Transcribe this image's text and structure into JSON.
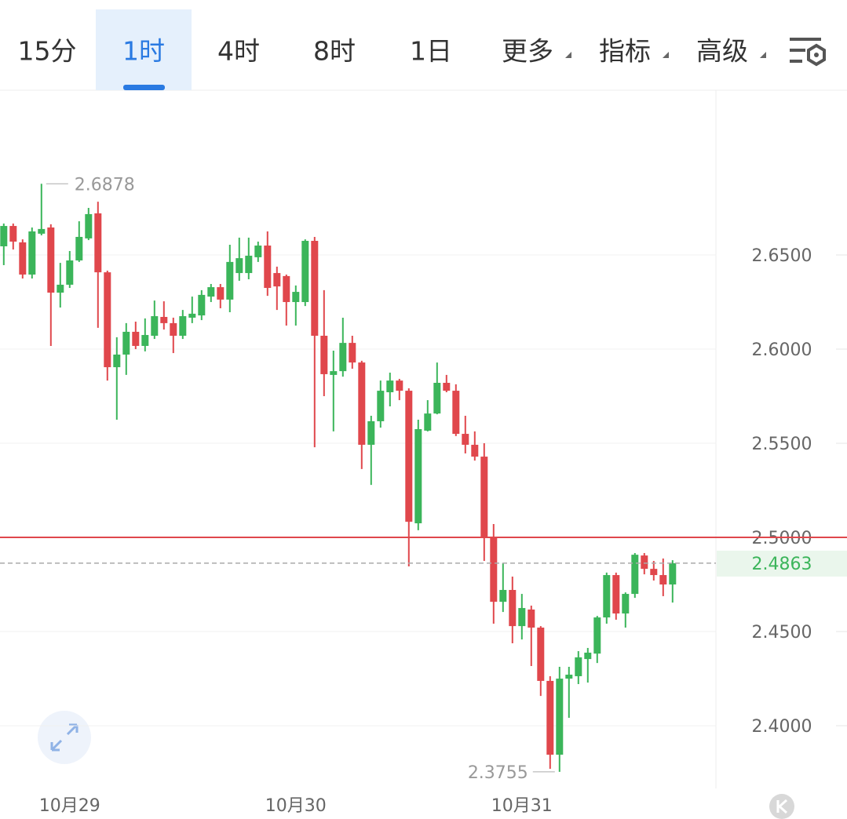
{
  "tabs": {
    "items": [
      "15分",
      "1时",
      "4时",
      "8时",
      "1日",
      "更多",
      "指标",
      "高级"
    ],
    "selected": 1
  },
  "chart_data": {
    "type": "candlestick",
    "up_color": "#3bb55a",
    "down_color": "#e0474c",
    "open": [
      2.6546,
      2.6654,
      2.6567,
      2.6396,
      2.6613,
      2.6646,
      2.63,
      2.6342,
      2.6471,
      2.6588,
      2.6721,
      2.6408,
      2.5904,
      2.5971,
      2.6092,
      2.6017,
      2.6071,
      2.6171,
      2.6138,
      2.6071,
      2.6167,
      2.6179,
      2.6279,
      2.6329,
      2.6263,
      2.6404,
      2.6404,
      2.6488,
      2.655,
      2.6404,
      2.6388,
      2.625,
      2.625,
      2.6575,
      2.6071,
      2.5863,
      2.5883,
      2.6033,
      2.5929,
      2.5492,
      2.5617,
      2.5771,
      2.5833,
      2.5779,
      2.5075,
      2.5567,
      2.5658,
      2.5821,
      2.5779,
      2.555,
      2.5492,
      2.5429,
      2.5,
      2.4658,
      2.4721,
      2.4529,
      2.4617,
      2.4521,
      2.4238,
      2.3846,
      2.425,
      2.4263,
      2.4354,
      2.4383,
      2.4575,
      2.48,
      2.4596,
      2.47,
      2.4904,
      2.4833,
      2.48,
      2.475
    ],
    "high": [
      2.6667,
      2.6667,
      2.6583,
      2.6646,
      2.6878,
      2.6663,
      2.6458,
      2.6521,
      2.6679,
      2.675,
      2.6783,
      2.6417,
      2.6063,
      2.6138,
      2.6146,
      2.6163,
      2.6258,
      2.6254,
      2.6167,
      2.6208,
      2.6279,
      2.6313,
      2.6346,
      2.6346,
      2.6554,
      2.6592,
      2.6592,
      2.6571,
      2.6625,
      2.6438,
      2.6396,
      2.6338,
      2.6583,
      2.6596,
      2.6313,
      2.5992,
      2.6167,
      2.6071,
      2.5938,
      2.5646,
      2.5833,
      2.5875,
      2.5842,
      2.5792,
      2.5625,
      2.5729,
      2.5929,
      2.5863,
      2.5813,
      2.5646,
      2.5563,
      2.55,
      2.5071,
      2.4863,
      2.4792,
      2.47,
      2.4638,
      2.4529,
      2.4263,
      2.4313,
      2.4313,
      2.4396,
      2.4413,
      2.4583,
      2.4813,
      2.4813,
      2.4708,
      2.4917,
      2.4917,
      2.4875,
      2.4888,
      2.4879
    ],
    "low": [
      2.6446,
      2.6529,
      2.6375,
      2.6375,
      2.6604,
      2.6017,
      2.6221,
      2.6325,
      2.6463,
      2.6579,
      2.6113,
      2.5833,
      2.5625,
      2.5863,
      2.6,
      2.5988,
      2.6054,
      2.6104,
      2.5979,
      2.6054,
      2.6138,
      2.6154,
      2.625,
      2.6217,
      2.6196,
      2.6363,
      2.6371,
      2.6463,
      2.6283,
      2.6208,
      2.6125,
      2.6125,
      2.6229,
      2.5479,
      2.575,
      2.5563,
      2.5854,
      2.5896,
      2.5363,
      2.5279,
      2.5583,
      2.5696,
      2.5729,
      2.4846,
      2.5038,
      2.5563,
      2.5654,
      2.5771,
      2.5538,
      2.5446,
      2.5408,
      2.4875,
      2.4542,
      2.4604,
      2.4438,
      2.4458,
      2.4317,
      2.4158,
      2.3771,
      2.3755,
      2.4042,
      2.4221,
      2.4229,
      2.4333,
      2.4542,
      2.4563,
      2.4521,
      2.4679,
      2.4804,
      2.4771,
      2.4688,
      2.4654
    ],
    "close": [
      2.6654,
      2.6571,
      2.6396,
      2.6625,
      2.6638,
      2.63,
      2.6342,
      2.6471,
      2.6596,
      2.6717,
      2.6408,
      2.5904,
      2.5971,
      2.6092,
      2.6017,
      2.6075,
      2.6175,
      2.6138,
      2.6071,
      2.6175,
      2.6188,
      2.6288,
      2.6329,
      2.6263,
      2.6463,
      2.6483,
      2.6496,
      2.655,
      2.6325,
      2.6333,
      2.625,
      2.6304,
      2.6575,
      2.6071,
      2.5867,
      2.5883,
      2.6033,
      2.5929,
      2.5492,
      2.5617,
      2.5779,
      2.5833,
      2.5779,
      2.5083,
      2.5575,
      2.5658,
      2.5821,
      2.5779,
      2.555,
      2.5492,
      2.5429,
      2.5,
      2.4658,
      2.4721,
      2.4529,
      2.4625,
      2.4521,
      2.4238,
      2.3846,
      2.425,
      2.4271,
      2.4363,
      2.4388,
      2.4575,
      2.48,
      2.4596,
      2.47,
      2.4908,
      2.4833,
      2.48,
      2.475,
      2.4863
    ],
    "reference_line": 2.5,
    "xlim": [
      -0.4,
      75.6
    ],
    "xticks": [
      {
        "value": 7,
        "label": "10月29"
      },
      {
        "value": 31,
        "label": "10月30"
      },
      {
        "value": 55,
        "label": "10月31"
      }
    ],
    "ylim": [
      2.3667,
      2.7375
    ],
    "yticks": [
      {
        "value": 2.4,
        "label": "2.4000"
      },
      {
        "value": 2.45,
        "label": "2.4500"
      },
      {
        "value": 2.5,
        "label": "2.5000"
      },
      {
        "value": 2.55,
        "label": "2.5500"
      },
      {
        "value": 2.6,
        "label": "2.6000"
      },
      {
        "value": 2.65,
        "label": "2.6500"
      }
    ],
    "grid": true
  }
}
